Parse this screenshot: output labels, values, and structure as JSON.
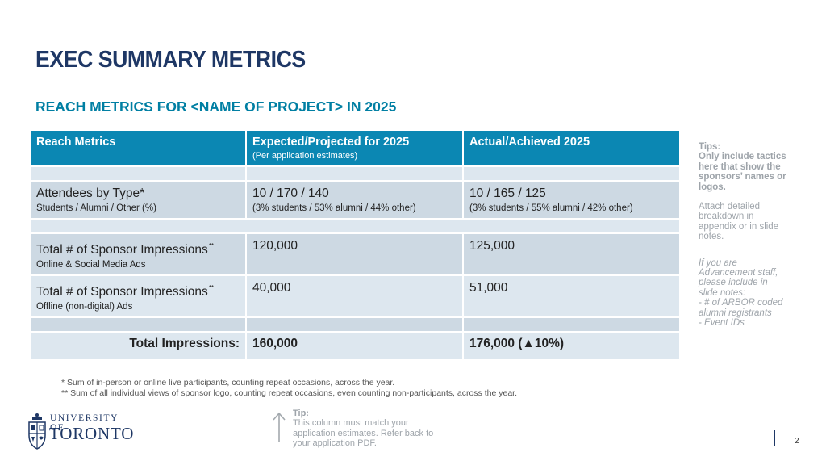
{
  "slide": {
    "title": "EXEC SUMMARY METRICS",
    "subtitle": "REACH METRICS FOR <NAME OF PROJECT> IN 2025",
    "page_number": "2"
  },
  "table": {
    "headers": [
      {
        "label": "Reach Metrics",
        "sub": ""
      },
      {
        "label": "Expected/Projected for 2025",
        "sub": "(Per application estimates)"
      },
      {
        "label": "Actual/Achieved 2025",
        "sub": ""
      }
    ],
    "attendees": {
      "label": "Attendees by Type*",
      "sub": "Students / Alumni / Other (%)",
      "expected": "10 / 170 / 140",
      "expected_sub": "(3% students / 53% alumni / 44% other)",
      "actual": "10 / 165 / 125",
      "actual_sub": "(3% students / 55% alumni / 42% other)"
    },
    "online_impressions": {
      "label": "Total # of Sponsor Impressions",
      "note": "**",
      "sub": "Online & Social Media Ads",
      "expected": "120,000",
      "actual": "125,000"
    },
    "offline_impressions": {
      "label": "Total # of Sponsor Impressions",
      "note": "**",
      "sub": "Offline (non-digital) Ads",
      "expected": "40,000",
      "actual": "51,000"
    },
    "total": {
      "label": "Total Impressions:",
      "expected": "160,000",
      "actual": "176,000 (▲10%)"
    }
  },
  "tips": {
    "heading": "Tips:",
    "bold_text": "Only include tactics here that show the sponsors’ names or logos.",
    "attach_text": "Attach detailed breakdown in appendix or in slide notes.",
    "advancement_lines": [
      "If you are Advancement staff, please include in slide notes:",
      "- # of ARBOR coded alumni registrants",
      "- Event IDs"
    ]
  },
  "footnotes": [
    "* Sum of in-person or online live participants, counting repeat occasions, across the year.",
    "** Sum of all individual views of sponsor logo, counting repeat occasions, even counting non-participants, across the year."
  ],
  "bottom_tip": {
    "heading": "Tip:",
    "text": "This column must match your application estimates. Refer back to your application PDF."
  },
  "logo": {
    "line1": "UNIVERSITY OF",
    "line2": "TORONTO"
  },
  "colors": {
    "title": "#1e3765",
    "subtitle": "#007fa3",
    "table_header": "#0b87b3",
    "row_light": "#dde7ef",
    "row_dark": "#cdd9e3",
    "tip_text": "#9ea4aa"
  }
}
